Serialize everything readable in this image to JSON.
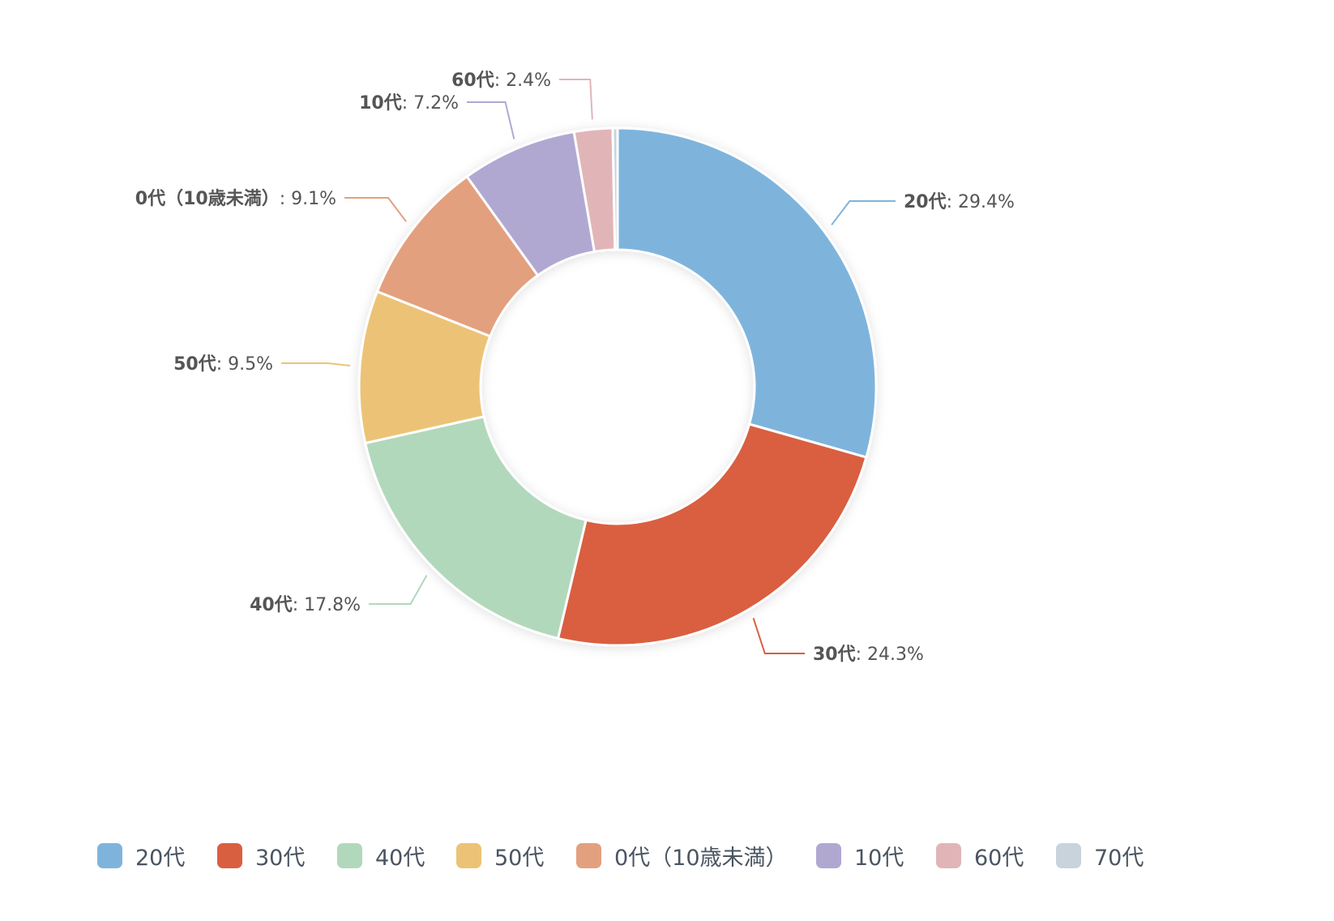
{
  "chart_data": {
    "type": "pie",
    "variant": "donut",
    "title": "",
    "slices": [
      {
        "name": "20代",
        "value": 29.4,
        "label_value": "29.4%",
        "color": "#7eb4dc"
      },
      {
        "name": "30代",
        "value": 24.3,
        "label_value": "24.3%",
        "color": "#d95f41"
      },
      {
        "name": "40代",
        "value": 17.8,
        "label_value": "17.8%",
        "color": "#b2d8bc"
      },
      {
        "name": "50代",
        "value": 9.5,
        "label_value": "9.5%",
        "color": "#ecc376"
      },
      {
        "name": "0代（10歳未満）",
        "value": 9.1,
        "label_value": "9.1%",
        "color": "#e3a07e"
      },
      {
        "name": "10代",
        "value": 7.2,
        "label_value": "7.2%",
        "color": "#b1a8d2"
      },
      {
        "name": "60代",
        "value": 2.4,
        "label_value": "2.4%",
        "color": "#e1b5b8"
      },
      {
        "name": "70代",
        "value": 0.3,
        "label_value": "",
        "color": "#c9d3db"
      }
    ],
    "label_style": "outside-with-leader-lines",
    "legend_position": "bottom",
    "legend": [
      "20代",
      "30代",
      "40代",
      "50代",
      "0代（10歳未満）",
      "10代",
      "60代",
      "70代"
    ]
  }
}
